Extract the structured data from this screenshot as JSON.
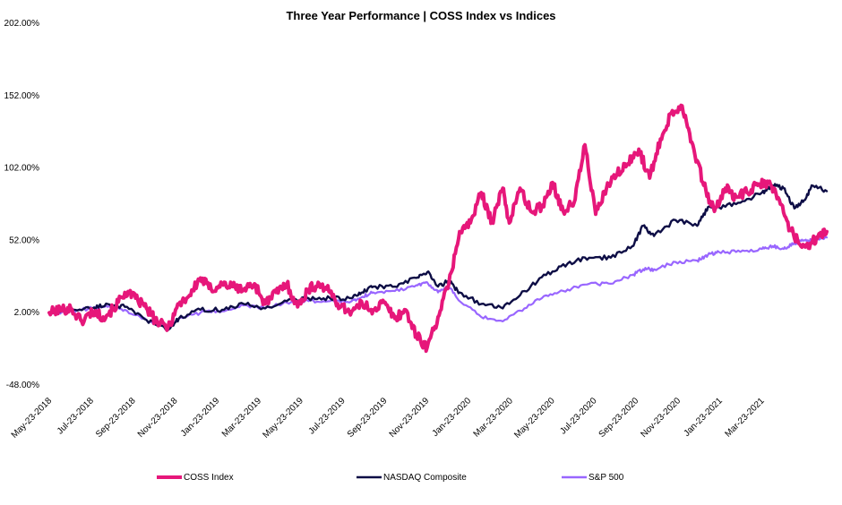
{
  "chart_data": {
    "type": "line",
    "title": "Three Year Performance | COSS Index vs Indices",
    "xlabel": "",
    "ylabel": "",
    "ylim": [
      -48,
      202
    ],
    "yticks": [
      -48,
      2,
      52,
      102,
      152,
      202
    ],
    "ytick_labels": [
      "-48.00%",
      "2.00%",
      "52.00%",
      "102.00%",
      "152.00%",
      "202.00%"
    ],
    "x_tick_labels": [
      "May-23-2018",
      "Jul-23-2018",
      "Sep-23-2018",
      "Nov-23-2018",
      "Jan-23-2019",
      "Mar-23-2019",
      "May-23-2019",
      "Jul-23-2019",
      "Sep-23-2019",
      "Nov-23-2019",
      "Jan-23-2020",
      "Mar-23-2020",
      "May-23-2020",
      "Jul-23-2020",
      "Sep-23-2020",
      "Nov-23-2020",
      "Jan-23-2021",
      "Mar-23-2021"
    ],
    "x_range_months": [
      0,
      36
    ],
    "legend_position": "bottom",
    "grid": false,
    "series": [
      {
        "name": "COSS Index",
        "color": "#e6177a",
        "x": [
          0,
          0.5,
          1,
          1.5,
          2,
          2.5,
          3,
          3.5,
          4,
          4.5,
          5,
          5.5,
          6,
          6.5,
          7,
          7.5,
          8,
          8.5,
          9,
          9.5,
          10,
          10.5,
          11,
          11.5,
          12,
          12.5,
          13,
          13.5,
          14,
          14.5,
          15,
          15.5,
          16,
          16.5,
          17,
          17.5,
          18,
          18.5,
          19,
          19.5,
          20,
          20.5,
          21,
          21.3,
          21.8,
          22.3,
          22.8,
          23.3,
          23.8,
          24.3,
          24.8,
          25.3,
          25.8,
          26.3,
          26.8,
          27.3,
          27.8,
          28.3,
          28.8,
          29.3,
          29.8,
          30.3,
          30.8,
          31.3,
          31.8,
          32.3,
          32.8,
          33.3,
          33.8,
          34.3,
          34.8,
          35.3,
          35.6,
          36
        ],
        "values": [
          2,
          4,
          5,
          -4,
          3,
          -1,
          5,
          16,
          12,
          5,
          -5,
          -8,
          8,
          14,
          26,
          18,
          22,
          20,
          18,
          22,
          8,
          16,
          22,
          6,
          18,
          22,
          16,
          6,
          3,
          8,
          4,
          9,
          -2,
          4,
          -14,
          -22,
          -1,
          22,
          58,
          64,
          85,
          65,
          88,
          64,
          88,
          72,
          75,
          92,
          72,
          78,
          118,
          70,
          88,
          98,
          105,
          115,
          95,
          122,
          140,
          145,
          118,
          90,
          72,
          88,
          82,
          85,
          90,
          92,
          80,
          60,
          48,
          50,
          55,
          58
        ]
      },
      {
        "name": "NASDAQ Composite",
        "color": "#0d0d45",
        "x": [
          0,
          1,
          2,
          2.7,
          3.5,
          4.5,
          5.5,
          6,
          7,
          8,
          9,
          10,
          11,
          12,
          13,
          14,
          14.5,
          15,
          16,
          17,
          17.5,
          18,
          18.5,
          19,
          20,
          21,
          22,
          23,
          24,
          25,
          26,
          27,
          27.5,
          28,
          29,
          30,
          30.5,
          31,
          32,
          33,
          33.5,
          34,
          34.5,
          35,
          35.3,
          36
        ],
        "values": [
          2,
          4,
          5,
          8,
          6,
          -3,
          -10,
          -2,
          4,
          4,
          8,
          5,
          10,
          12,
          12,
          12,
          16,
          20,
          20,
          26,
          30,
          20,
          24,
          16,
          8,
          5,
          17,
          28,
          36,
          40,
          40,
          48,
          62,
          55,
          66,
          62,
          75,
          75,
          78,
          85,
          90,
          88,
          74,
          80,
          90,
          86
        ]
      },
      {
        "name": "S&P 500",
        "color": "#9966ff",
        "x": [
          0,
          1,
          2,
          2.7,
          3.5,
          4.5,
          5.5,
          6,
          7,
          8,
          9,
          10,
          11,
          12,
          13,
          14,
          14.5,
          15,
          16,
          17,
          17.5,
          18,
          18.5,
          19,
          20,
          21,
          22,
          23,
          24,
          25,
          26,
          27,
          27.5,
          28,
          29,
          30,
          30.5,
          31,
          32,
          33,
          33.5,
          34,
          34.5,
          35,
          35.3,
          36
        ],
        "values": [
          2,
          3,
          5,
          6,
          4,
          -3,
          -9,
          -2,
          2,
          3,
          7,
          5,
          9,
          10,
          10,
          10,
          13,
          16,
          17,
          21,
          23,
          16,
          20,
          10,
          -1,
          -4,
          5,
          14,
          18,
          22,
          22,
          28,
          32,
          32,
          37,
          38,
          42,
          44,
          44,
          46,
          48,
          46,
          50,
          52,
          52,
          54
        ]
      }
    ]
  }
}
